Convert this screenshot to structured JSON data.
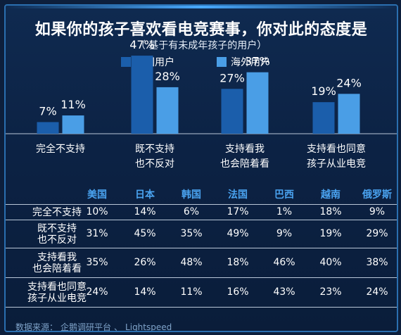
{
  "title": "如果你的孩子喜欢看电竞赛事，你对此的态度是",
  "subtitle": "（ 基于有未成年孩子的用户）",
  "colors": {
    "china": "#1b5eab",
    "overseas": "#4a9ee6",
    "header": "#4aa3f0",
    "bg": "#0c2244"
  },
  "chart_data": {
    "type": "bar",
    "categories": [
      "完全不支持",
      "既不支持\n也不反对",
      "支持看我\n也会陪着看",
      "支持看也同意\n孩子从业电竞"
    ],
    "series": [
      {
        "name": "中国用户",
        "values": [
          7,
          47,
          27,
          19
        ],
        "labels": [
          "7%",
          "47%",
          "27%",
          "19%"
        ]
      },
      {
        "name": "海外用户",
        "values": [
          11,
          28,
          37,
          24
        ],
        "labels": [
          "11%",
          "28%",
          "37%",
          "24%"
        ]
      }
    ],
    "ylim": [
      0,
      50
    ],
    "grid": false,
    "legend": "top-center"
  },
  "table": {
    "countries": [
      "美国",
      "日本",
      "韩国",
      "法国",
      "巴西",
      "越南",
      "俄罗斯"
    ],
    "rows": [
      {
        "label": "完全不支持",
        "values": [
          "10%",
          "14%",
          "6%",
          "17%",
          "1%",
          "18%",
          "9%"
        ]
      },
      {
        "label": "既不支持\n也不反对",
        "values": [
          "31%",
          "45%",
          "35%",
          "49%",
          "9%",
          "19%",
          "29%"
        ]
      },
      {
        "label": "支持看我\n也会陪着看",
        "values": [
          "35%",
          "26%",
          "48%",
          "18%",
          "46%",
          "40%",
          "38%"
        ]
      },
      {
        "label": "支持看也同意\n孩子从业电竞",
        "values": [
          "24%",
          "14%",
          "11%",
          "16%",
          "43%",
          "23%",
          "24%"
        ]
      }
    ]
  },
  "source": {
    "prefix": "数据来源：",
    "name1": "企鹅调研平台",
    "sep": "、",
    "name2": "Lightspeed"
  }
}
